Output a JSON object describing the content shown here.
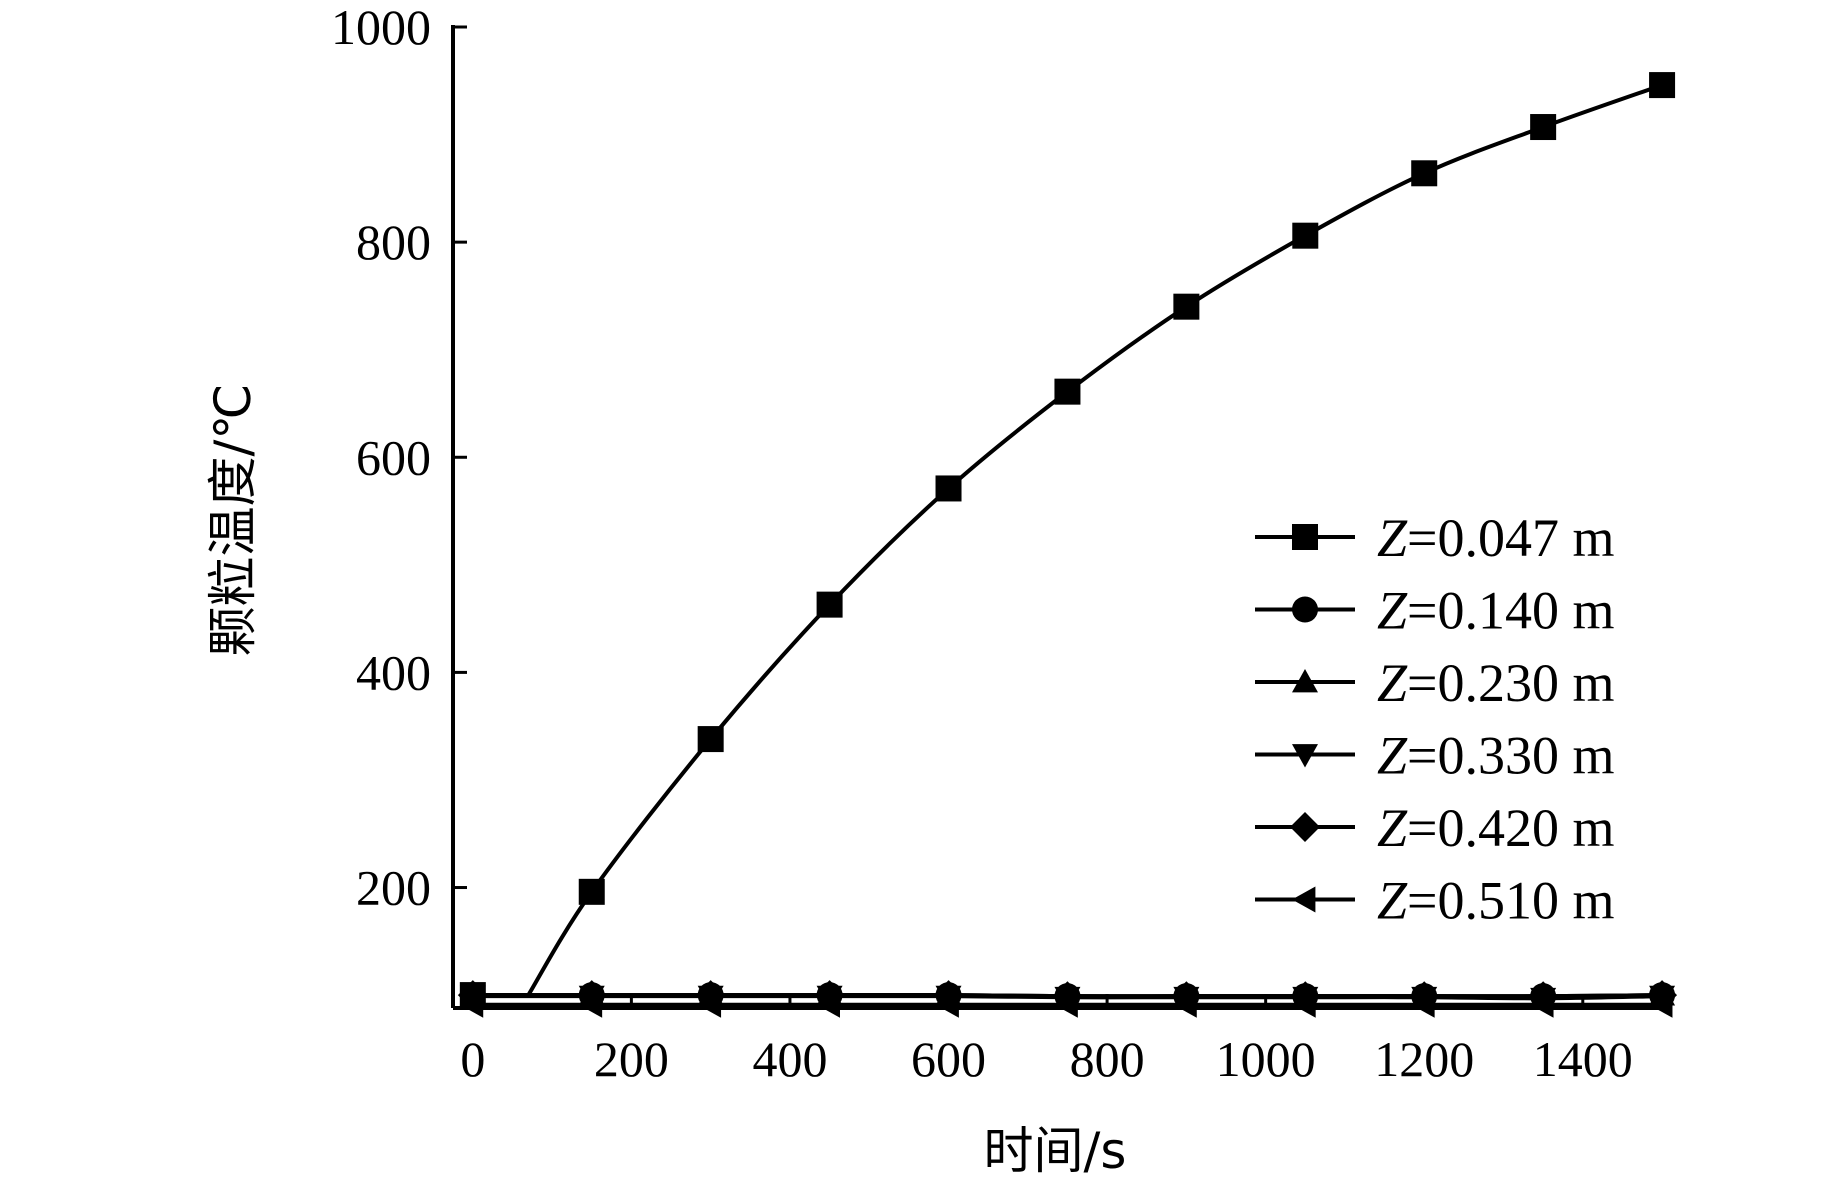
{
  "chart_data": {
    "type": "line",
    "xlabel": "时间/s",
    "ylabel": "颗粒温度/℃",
    "xlim": [
      -25,
      1510
    ],
    "ylim": [
      88,
      1000
    ],
    "xticks": [
      0,
      200,
      400,
      600,
      800,
      1000,
      1200,
      1400
    ],
    "yticks": [
      200,
      400,
      600,
      800,
      1000
    ],
    "x_tick_labels": [
      "0",
      "200",
      "400",
      "600",
      "800",
      "1000",
      "1200",
      "1400"
    ],
    "y_tick_labels": [
      "200",
      "400",
      "600",
      "800",
      "1000"
    ],
    "legend_position": "right",
    "line_color": "#000000",
    "series": [
      {
        "name": "Z=0.047 m",
        "label_var": "Z",
        "label_rest": "=0.047 m",
        "marker": "square",
        "x": [
          0,
          70,
          150,
          300,
          450,
          600,
          750,
          900,
          1050,
          1200,
          1350,
          1500
        ],
        "y": [
          100,
          100,
          196,
          338,
          463,
          571,
          661,
          740,
          806,
          864,
          907,
          946
        ]
      },
      {
        "name": "Z=0.140 m",
        "label_var": "Z",
        "label_rest": "=0.140 m",
        "marker": "circle",
        "x": [
          0,
          150,
          300,
          450,
          600,
          750,
          900,
          1050,
          1200,
          1350,
          1500
        ],
        "y": [
          100,
          100,
          100,
          100,
          100,
          99,
          99,
          99,
          99,
          99,
          100
        ]
      },
      {
        "name": "Z=0.230 m",
        "label_var": "Z",
        "label_rest": "=0.230 m",
        "marker": "triangle-up",
        "x": [
          0,
          150,
          300,
          450,
          600,
          750,
          900,
          1050,
          1200,
          1350,
          1500
        ],
        "y": [
          100,
          100,
          100,
          100,
          100,
          99,
          99,
          99,
          99,
          99,
          100
        ]
      },
      {
        "name": "Z=0.330 m",
        "label_var": "Z",
        "label_rest": "=0.330 m",
        "marker": "triangle-down",
        "x": [
          0,
          150,
          300,
          450,
          600,
          750,
          900,
          1050,
          1200,
          1350,
          1500
        ],
        "y": [
          99,
          99,
          99,
          99,
          99,
          98,
          98,
          98,
          98,
          97,
          99
        ]
      },
      {
        "name": "Z=0.420 m",
        "label_var": "Z",
        "label_rest": "=0.420 m",
        "marker": "diamond",
        "x": [
          0,
          150,
          300,
          450,
          600,
          750,
          900,
          1050,
          1200,
          1350,
          1500
        ],
        "y": [
          100,
          100,
          100,
          100,
          100,
          99,
          99,
          99,
          99,
          99,
          100
        ]
      },
      {
        "name": "Z=0.510 m",
        "label_var": "Z",
        "label_rest": "=0.510 m",
        "marker": "triangle-left",
        "x": [
          0,
          150,
          300,
          450,
          600,
          750,
          900,
          1050,
          1200,
          1350,
          1500
        ],
        "y": [
          91,
          91,
          91,
          91,
          91,
          91,
          91,
          91,
          91,
          91,
          91
        ]
      }
    ]
  }
}
